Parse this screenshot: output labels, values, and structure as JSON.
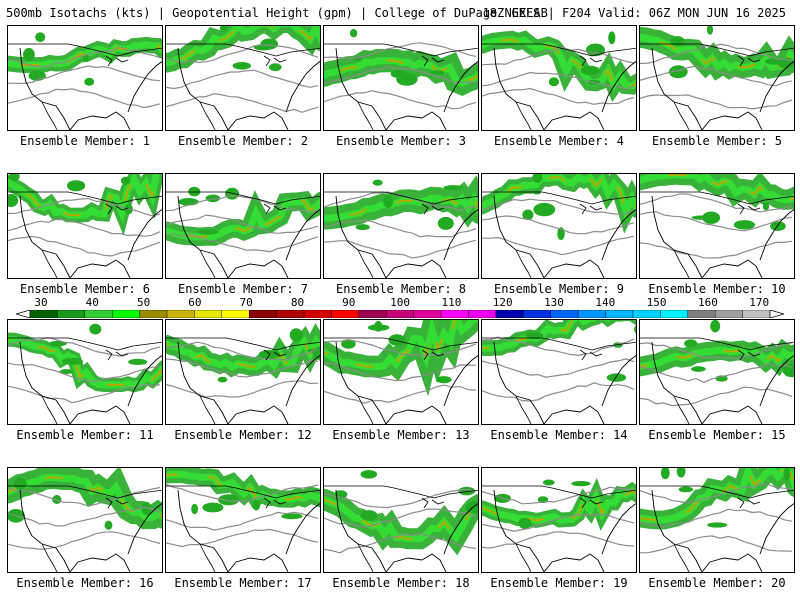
{
  "header": {
    "left": "500mb Isotachs (kts) | Geopotential Height (gpm) | College of DuPage NEXLAB",
    "right": "18Z GEFS | F204 Valid: 06Z MON JUN 16 2025"
  },
  "members": [
    {
      "label": "Ensemble Member: 1"
    },
    {
      "label": "Ensemble Member: 2"
    },
    {
      "label": "Ensemble Member: 3"
    },
    {
      "label": "Ensemble Member: 4"
    },
    {
      "label": "Ensemble Member: 5"
    },
    {
      "label": "Ensemble Member: 6"
    },
    {
      "label": "Ensemble Member: 7"
    },
    {
      "label": "Ensemble Member: 8"
    },
    {
      "label": "Ensemble Member: 9"
    },
    {
      "label": "Ensemble Member: 10"
    },
    {
      "label": "Ensemble Member: 11"
    },
    {
      "label": "Ensemble Member: 12"
    },
    {
      "label": "Ensemble Member: 13"
    },
    {
      "label": "Ensemble Member: 14"
    },
    {
      "label": "Ensemble Member: 15"
    },
    {
      "label": "Ensemble Member: 16"
    },
    {
      "label": "Ensemble Member: 17"
    },
    {
      "label": "Ensemble Member: 18"
    },
    {
      "label": "Ensemble Member: 19"
    },
    {
      "label": "Ensemble Member: 20"
    }
  ],
  "colorbar": {
    "labels": [
      "30",
      "40",
      "50",
      "60",
      "70",
      "80",
      "90",
      "100",
      "110",
      "120",
      "130",
      "140",
      "150",
      "160",
      "170"
    ],
    "colors": [
      "#006400",
      "#1a9a1a",
      "#33cc33",
      "#00ff00",
      "#9c8a00",
      "#c8b400",
      "#e6e600",
      "#ffff00",
      "#8b0000",
      "#b00000",
      "#d40000",
      "#ff0000",
      "#a00050",
      "#c80078",
      "#e000a0",
      "#ff00ff",
      "#ee00ee",
      "#0000b0",
      "#0030e0",
      "#0064ff",
      "#0096ff",
      "#00b4ff",
      "#00d2ff",
      "#00f0ff",
      "#808080",
      "#a0a0a0",
      "#c0c0c0"
    ]
  }
}
